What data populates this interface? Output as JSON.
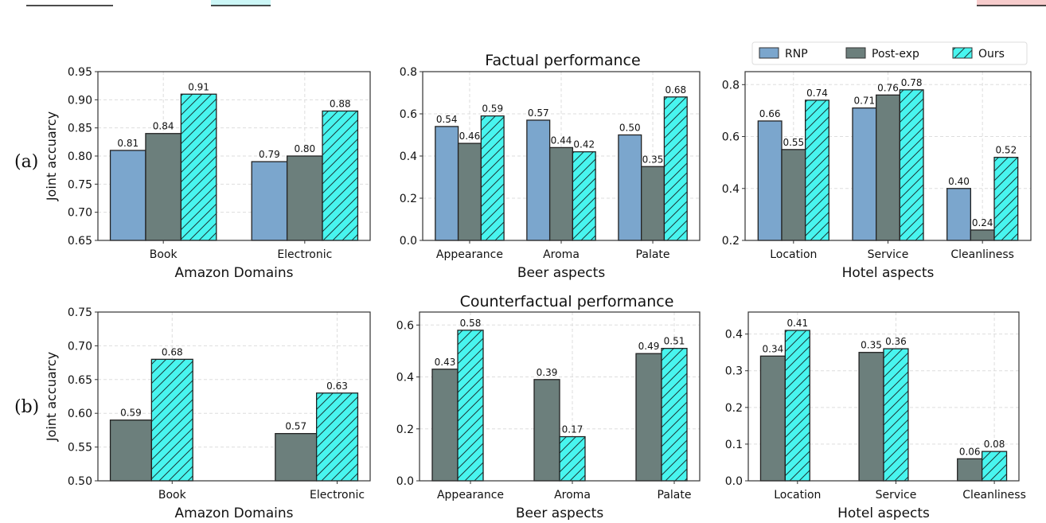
{
  "row_labels": [
    "(a)",
    "(b)"
  ],
  "row_titles": [
    "Factual performance",
    "Counterfactual performance"
  ],
  "legend": {
    "placement": "top-right",
    "entries": [
      {
        "name": "RNP",
        "color": "#7ba6cd",
        "hatch": false
      },
      {
        "name": "Post-exp",
        "color": "#6c7f7c",
        "hatch": false
      },
      {
        "name": "Ours",
        "color": "#48f5ef",
        "hatch": true
      }
    ]
  },
  "chart_data": [
    {
      "type": "bar",
      "row": "(a)",
      "xlabel": "Amazon Domains",
      "ylabel": "Joint accuarcy",
      "ylim": [
        0.65,
        0.95
      ],
      "yticks": [
        "0.65",
        "0.70",
        "0.75",
        "0.80",
        "0.85",
        "0.90",
        "0.95"
      ],
      "grid": true,
      "categories": [
        "Book",
        "Electronic"
      ],
      "series": [
        {
          "name": "RNP",
          "values": [
            0.81,
            0.79
          ]
        },
        {
          "name": "Post-exp",
          "values": [
            0.84,
            0.8
          ]
        },
        {
          "name": "Ours",
          "values": [
            0.91,
            0.88
          ]
        }
      ]
    },
    {
      "type": "bar",
      "row": "(a)",
      "xlabel": "Beer aspects",
      "ylabel": "",
      "ylim": [
        0.0,
        0.8
      ],
      "yticks": [
        "0.0",
        "0.2",
        "0.4",
        "0.6",
        "0.8"
      ],
      "grid": true,
      "categories": [
        "Appearance",
        "Aroma",
        "Palate"
      ],
      "series": [
        {
          "name": "RNP",
          "values": [
            0.54,
            0.57,
            0.5
          ]
        },
        {
          "name": "Post-exp",
          "values": [
            0.46,
            0.44,
            0.35
          ]
        },
        {
          "name": "Ours",
          "values": [
            0.59,
            0.42,
            0.68
          ]
        }
      ]
    },
    {
      "type": "bar",
      "row": "(a)",
      "xlabel": "Hotel aspects",
      "ylabel": "",
      "ylim": [
        0.2,
        0.85
      ],
      "yticks": [
        "0.2",
        "0.4",
        "0.6",
        "0.8"
      ],
      "grid": true,
      "categories": [
        "Location",
        "Service",
        "Cleanliness"
      ],
      "series": [
        {
          "name": "RNP",
          "values": [
            0.66,
            0.71,
            0.4
          ]
        },
        {
          "name": "Post-exp",
          "values": [
            0.55,
            0.76,
            0.24
          ]
        },
        {
          "name": "Ours",
          "values": [
            0.74,
            0.78,
            0.52
          ]
        }
      ]
    },
    {
      "type": "bar",
      "row": "(b)",
      "xlabel": "Amazon Domains",
      "ylabel": "Joint accuarcy",
      "ylim": [
        0.5,
        0.75
      ],
      "yticks": [
        "0.50",
        "0.55",
        "0.60",
        "0.65",
        "0.70",
        "0.75"
      ],
      "grid": true,
      "categories": [
        "Book",
        "Electronic"
      ],
      "series": [
        {
          "name": "Post-exp",
          "values": [
            0.59,
            0.57
          ]
        },
        {
          "name": "Ours",
          "values": [
            0.68,
            0.63
          ]
        }
      ]
    },
    {
      "type": "bar",
      "row": "(b)",
      "xlabel": "Beer aspects",
      "ylabel": "",
      "ylim": [
        0.0,
        0.65
      ],
      "yticks": [
        "0.0",
        "0.2",
        "0.4",
        "0.6"
      ],
      "grid": true,
      "categories": [
        "Appearance",
        "Aroma",
        "Palate"
      ],
      "series": [
        {
          "name": "Post-exp",
          "values": [
            0.43,
            0.39,
            0.49
          ]
        },
        {
          "name": "Ours",
          "values": [
            0.58,
            0.17,
            0.51
          ]
        }
      ]
    },
    {
      "type": "bar",
      "row": "(b)",
      "xlabel": "Hotel aspects",
      "ylabel": "",
      "ylim": [
        0.0,
        0.46
      ],
      "yticks": [
        "0.0",
        "0.1",
        "0.2",
        "0.3",
        "0.4"
      ],
      "grid": true,
      "categories": [
        "Location",
        "Service",
        "Cleanliness"
      ],
      "series": [
        {
          "name": "Post-exp",
          "values": [
            0.34,
            0.35,
            0.06
          ]
        },
        {
          "name": "Ours",
          "values": [
            0.41,
            0.36,
            0.08
          ]
        }
      ]
    }
  ]
}
